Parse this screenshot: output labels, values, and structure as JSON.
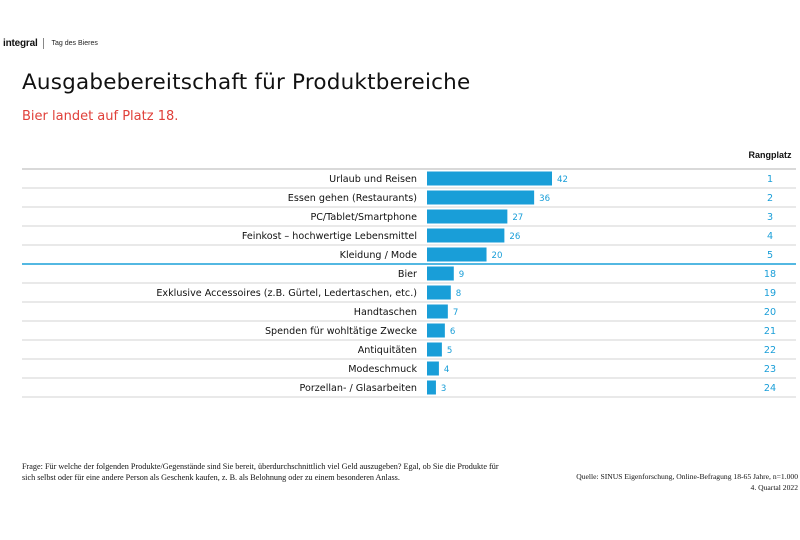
{
  "header": {
    "logo": "integral",
    "tag": "Tag des Bieres"
  },
  "title": "Ausgabebereitschaft für Produktbereiche",
  "subtitle": "Bier landet auf Platz 18.",
  "rank_header": "Rangplatz",
  "colors": {
    "bar": "#199ed8",
    "value": "#199ed8",
    "rank": "#199ed8",
    "subtitle": "#e0403a",
    "separator": "#1aa0d8"
  },
  "chart_data": {
    "type": "bar",
    "orientation": "horizontal",
    "categories": [
      "Urlaub und Reisen",
      "Essen gehen (Restaurants)",
      "PC/Tablet/Smartphone",
      "Feinkost – hochwertige Lebensmittel",
      "Kleidung / Mode",
      "Bier",
      "Exklusive Accessoires (z.B. Gürtel, Ledertaschen, etc.)",
      "Handtaschen",
      "Spenden für wohltätige Zwecke",
      "Antiquitäten",
      "Modeschmuck",
      "Porzellan- / Glasarbeiten"
    ],
    "values": [
      42,
      36,
      27,
      26,
      20,
      9,
      8,
      7,
      6,
      5,
      4,
      3
    ],
    "ranks": [
      1,
      2,
      3,
      4,
      5,
      18,
      19,
      20,
      21,
      22,
      23,
      24
    ],
    "xlim": [
      0,
      42
    ],
    "grid": false,
    "data_labels": true
  },
  "footnote": "Frage: Für welche der folgenden Produkte/Gegenstände sind Sie bereit, überdurchschnittlich viel Geld auszugeben? Egal, ob Sie die Produkte für sich selbst oder für eine andere Person als Geschenk kaufen, z. B. als Belohnung oder zu einem besonderen Anlass.",
  "source": {
    "line1": "Quelle: SINUS Eigenforschung, Online-Befragung 18-65 Jahre, n=1.000",
    "line2": "4. Quartal 2022"
  }
}
